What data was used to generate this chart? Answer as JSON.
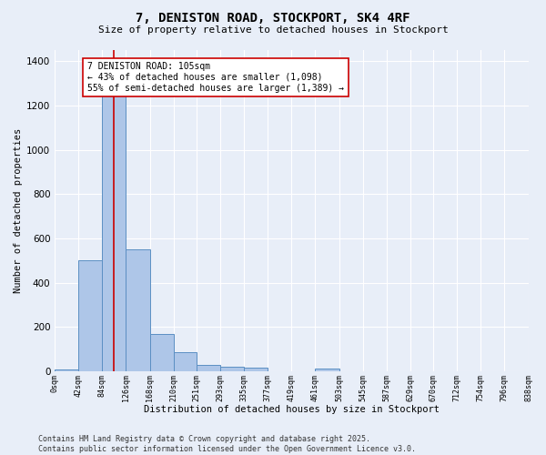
{
  "title": "7, DENISTON ROAD, STOCKPORT, SK4 4RF",
  "subtitle": "Size of property relative to detached houses in Stockport",
  "xlabel": "Distribution of detached houses by size in Stockport",
  "ylabel": "Number of detached properties",
  "bin_edges": [
    0,
    42,
    84,
    126,
    168,
    210,
    251,
    293,
    335,
    377,
    419,
    461,
    503,
    545,
    587,
    629,
    670,
    712,
    754,
    796,
    838
  ],
  "bar_heights": [
    10,
    500,
    1260,
    550,
    170,
    85,
    28,
    22,
    18,
    0,
    0,
    14,
    0,
    0,
    0,
    0,
    0,
    0,
    0,
    0
  ],
  "bar_color": "#aec6e8",
  "bar_edge_color": "#5b8fc3",
  "background_color": "#e8eef8",
  "grid_color": "#ffffff",
  "property_value": 105,
  "red_line_color": "#cc0000",
  "annotation_text": "7 DENISTON ROAD: 105sqm\n← 43% of detached houses are smaller (1,098)\n55% of semi-detached houses are larger (1,389) →",
  "annotation_box_color": "#ffffff",
  "annotation_box_edge_color": "#cc0000",
  "ylim": [
    0,
    1450
  ],
  "yticks": [
    0,
    200,
    400,
    600,
    800,
    1000,
    1200,
    1400
  ],
  "footer_text": "Contains HM Land Registry data © Crown copyright and database right 2025.\nContains public sector information licensed under the Open Government Licence v3.0.",
  "tick_labels": [
    "0sqm",
    "42sqm",
    "84sqm",
    "126sqm",
    "168sqm",
    "210sqm",
    "251sqm",
    "293sqm",
    "335sqm",
    "377sqm",
    "419sqm",
    "461sqm",
    "503sqm",
    "545sqm",
    "587sqm",
    "629sqm",
    "670sqm",
    "712sqm",
    "754sqm",
    "796sqm",
    "838sqm"
  ]
}
